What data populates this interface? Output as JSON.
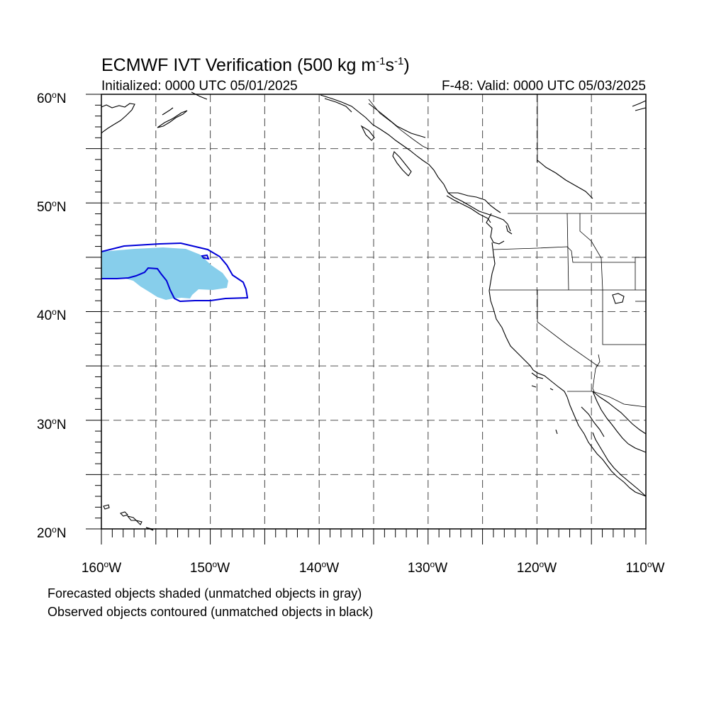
{
  "title": {
    "main": "ECMWF IVT Verification (500 kg m",
    "exp1": "-1",
    "mid": "s",
    "exp2": "-1",
    "end": ")"
  },
  "initialized": "Initialized: 0000 UTC 05/01/2025",
  "valid": "F-48: Valid: 0000 UTC 05/03/2025",
  "map": {
    "lon_range": [
      -160,
      -110
    ],
    "lat_range": [
      20,
      60
    ],
    "grid_line_style": "dashed",
    "lat_labels": [
      {
        "num": "60",
        "deg": "o",
        "hem": "N"
      },
      {
        "num": "50",
        "deg": "o",
        "hem": "N"
      },
      {
        "num": "40",
        "deg": "o",
        "hem": "N"
      },
      {
        "num": "30",
        "deg": "o",
        "hem": "N"
      },
      {
        "num": "20",
        "deg": "o",
        "hem": "N"
      }
    ],
    "lon_labels": [
      {
        "num": "160",
        "deg": "o",
        "hem": "W"
      },
      {
        "num": "150",
        "deg": "o",
        "hem": "W"
      },
      {
        "num": "140",
        "deg": "o",
        "hem": "W"
      },
      {
        "num": "130",
        "deg": "o",
        "hem": "W"
      },
      {
        "num": "120",
        "deg": "o",
        "hem": "W"
      },
      {
        "num": "110",
        "deg": "o",
        "hem": "W"
      }
    ],
    "forecast_object_color": "#87ceeb",
    "observed_contour_color": "#0000d8",
    "coastline_color": "#000000"
  },
  "caption": {
    "line1": "Forecasted objects shaded (unmatched objects in gray)",
    "line2": "Observed objects contoured (unmatched objects in black)"
  }
}
